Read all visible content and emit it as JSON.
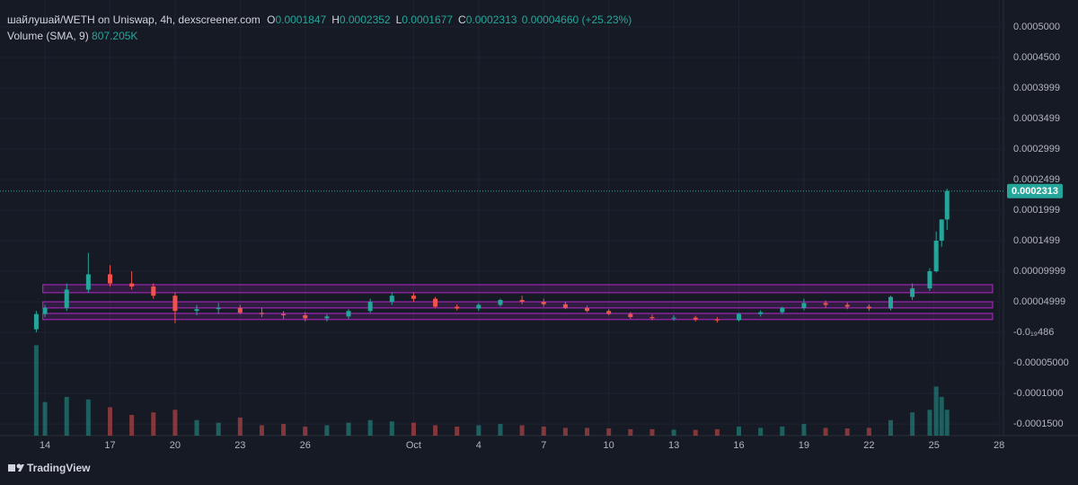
{
  "chart_data": {
    "type": "candlestick",
    "title": "шайлушай/WETH on Uniswap, 4h, dexscreener.com",
    "ohlc_legend": [
      {
        "label": "O",
        "value": "0.0001847"
      },
      {
        "label": "H",
        "value": "0.0002352"
      },
      {
        "label": "L",
        "value": "0.0001677"
      },
      {
        "label": "C",
        "value": "0.0002313"
      }
    ],
    "change": "0.00004660 (+25.23%)",
    "volume_label": "Volume (SMA, 9)",
    "volume_value": "807.205K",
    "last_price": 0.0002313,
    "branding": "TradingView",
    "up_color": "#26a69a",
    "down_color": "#ef5350",
    "zone_color": "#9c27b0",
    "grid": true,
    "xlim": [
      12.34,
      58.2
    ],
    "ylim": [
      -0.000169,
      0.000544
    ],
    "vlim": [
      0,
      4000000
    ],
    "xticks": [
      14,
      17,
      20,
      23,
      26,
      {
        "value": 31,
        "label": "Oct"
      },
      {
        "value": 34,
        "label": "4"
      },
      {
        "value": 37,
        "label": "7"
      },
      {
        "value": 40,
        "label": "10"
      },
      {
        "value": 43,
        "label": "13"
      },
      {
        "value": 46,
        "label": "16"
      },
      {
        "value": 49,
        "label": "19"
      },
      {
        "value": 52,
        "label": "22"
      },
      {
        "value": 55,
        "label": "25"
      },
      {
        "value": 58,
        "label": "28"
      }
    ],
    "yticks": [
      {
        "value": 0.0005,
        "label": "0.0005000"
      },
      {
        "value": 0.00045,
        "label": "0.0004500"
      },
      {
        "value": 0.0003999,
        "label": "0.0003999"
      },
      {
        "value": 0.0003499,
        "label": "0.0003499"
      },
      {
        "value": 0.0002999,
        "label": "0.0002999"
      },
      {
        "value": 0.0002499,
        "label": "0.0002499"
      },
      {
        "value": 0.0001999,
        "label": "0.0001999"
      },
      {
        "value": 0.0001499,
        "label": "0.0001499"
      },
      {
        "value": 9.999e-05,
        "label": "0.00009999"
      },
      {
        "value": 4.999e-05,
        "label": "0.00004999"
      },
      {
        "value": -4.86e-20,
        "label": "-0.0₁₉486"
      },
      {
        "value": -5e-05,
        "label": "-0.00005000"
      },
      {
        "value": -0.0001,
        "label": "-0.0001000"
      },
      {
        "value": -0.00015,
        "label": "-0.0001500"
      }
    ],
    "zones": [
      {
        "low": 6.5e-05,
        "high": 7.8e-05,
        "start": 13.9,
        "end": 57.7
      },
      {
        "low": 4e-05,
        "high": 5e-05,
        "start": 13.9,
        "end": 57.7
      },
      {
        "low": 2.1e-05,
        "high": 3.1e-05,
        "start": 13.9,
        "end": 57.7
      }
    ],
    "x": [
      13.6,
      14,
      15,
      16,
      17,
      18,
      19,
      20,
      21,
      22,
      23,
      24,
      25,
      26,
      27,
      28,
      29,
      30,
      31,
      32,
      33,
      34,
      35,
      36,
      37,
      38,
      39,
      40,
      41,
      42,
      43,
      44,
      45,
      46,
      47,
      48,
      49,
      50,
      51,
      52,
      53,
      54,
      54.8,
      55.1,
      55.35,
      55.6
    ],
    "open": [
      5e-06,
      3e-05,
      4e-05,
      7e-05,
      9.5e-05,
      8e-05,
      7.5e-05,
      6e-05,
      3.5e-05,
      3.8e-05,
      4e-05,
      3.2e-05,
      3e-05,
      2.8e-05,
      2.3e-05,
      2.6e-05,
      3.5e-05,
      5e-05,
      6e-05,
      5.5e-05,
      4.2e-05,
      3.9e-05,
      4.5e-05,
      5.3e-05,
      5e-05,
      4.6e-05,
      4e-05,
      3.5e-05,
      3e-05,
      2.5e-05,
      2.3e-05,
      2.4e-05,
      2.1e-05,
      2e-05,
      3e-05,
      3.3e-05,
      4e-05,
      4.8e-05,
      4.5e-05,
      4.2e-05,
      3.9e-05,
      5.8e-05,
      7.2e-05,
      0.0001,
      0.00015,
      0.0001847
    ],
    "high": [
      3.5e-05,
      4.5e-05,
      8e-05,
      0.00013,
      0.00011,
      0.0001,
      8e-05,
      6.5e-05,
      4.5e-05,
      4.8e-05,
      4.5e-05,
      4e-05,
      3.5e-05,
      3.3e-05,
      3e-05,
      3.8e-05,
      5.5e-05,
      6.5e-05,
      6.5e-05,
      5.8e-05,
      4.6e-05,
      4.8e-05,
      5.5e-05,
      6e-05,
      5.5e-05,
      5e-05,
      4.4e-05,
      3.8e-05,
      3.3e-05,
      2.9e-05,
      2.8e-05,
      2.7e-05,
      2.5e-05,
      3.2e-05,
      3.6e-05,
      4.2e-05,
      5.5e-05,
      5.2e-05,
      4.9e-05,
      4.6e-05,
      6e-05,
      8e-05,
      0.000105,
      0.000165,
      0.000185,
      0.0002352
    ],
    "low": [
      0,
      2.5e-05,
      3.5e-05,
      6.5e-05,
      7.5e-05,
      7e-05,
      5.5e-05,
      1.5e-05,
      2.8e-05,
      3e-05,
      3e-05,
      2.5e-05,
      2.2e-05,
      1.8e-05,
      1.8e-05,
      2.2e-05,
      3.2e-05,
      4.5e-05,
      5e-05,
      4e-05,
      3.6e-05,
      3.5e-05,
      4.2e-05,
      4.6e-05,
      4.2e-05,
      3.8e-05,
      3.3e-05,
      2.8e-05,
      2.2e-05,
      2e-05,
      1.9e-05,
      1.8e-05,
      1.6e-05,
      1.8e-05,
      2.6e-05,
      3e-05,
      3.6e-05,
      4e-05,
      3.8e-05,
      3.5e-05,
      3.6e-05,
      5.3e-05,
      6.8e-05,
      9.8e-05,
      0.00014,
      0.0001677
    ],
    "close": [
      3e-05,
      4e-05,
      7e-05,
      9.5e-05,
      8e-05,
      7.5e-05,
      6e-05,
      3.5e-05,
      3.8e-05,
      4e-05,
      3.2e-05,
      3e-05,
      2.8e-05,
      2.3e-05,
      2.6e-05,
      3.5e-05,
      5e-05,
      6e-05,
      5.5e-05,
      4.2e-05,
      3.9e-05,
      4.5e-05,
      5.3e-05,
      5e-05,
      4.6e-05,
      4e-05,
      3.5e-05,
      3e-05,
      2.5e-05,
      2.3e-05,
      2.4e-05,
      2.1e-05,
      2e-05,
      3e-05,
      3.3e-05,
      4e-05,
      4.8e-05,
      4.5e-05,
      4.2e-05,
      3.9e-05,
      5.8e-05,
      7.2e-05,
      0.0001,
      0.00015,
      0.0001847,
      0.0002313
    ],
    "volume": [
      3500000,
      1300000,
      1500000,
      1400000,
      1100000,
      800000,
      900000,
      1000000,
      600000,
      500000,
      700000,
      400000,
      450000,
      350000,
      400000,
      500000,
      600000,
      550000,
      500000,
      400000,
      350000,
      400000,
      450000,
      400000,
      350000,
      300000,
      300000,
      280000,
      250000,
      250000,
      230000,
      220000,
      250000,
      350000,
      300000,
      350000,
      450000,
      300000,
      280000,
      300000,
      600000,
      900000,
      1000000,
      1900000,
      1500000,
      1000000
    ]
  }
}
